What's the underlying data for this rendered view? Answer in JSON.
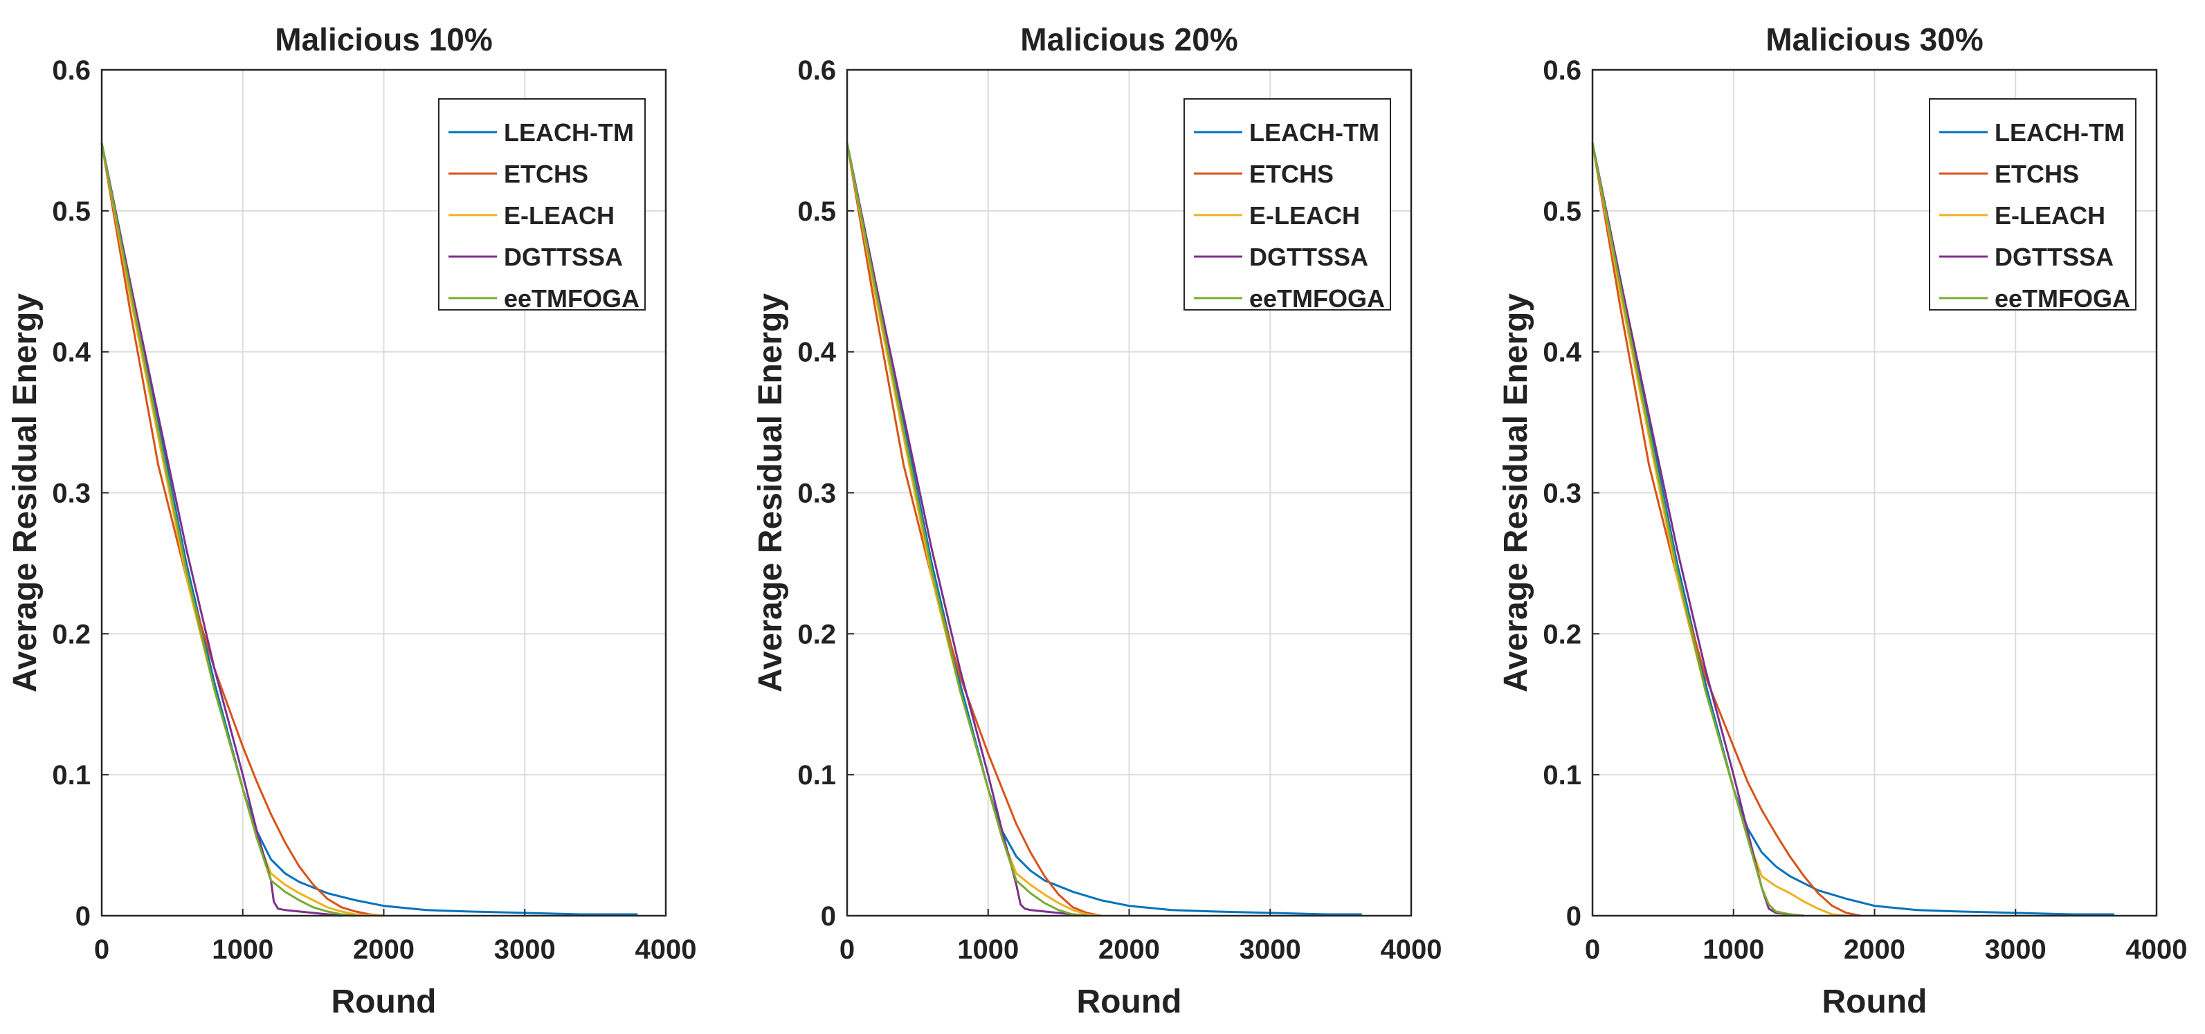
{
  "figure": {
    "ylabel": "Average Residual Energy",
    "xlabel": "Round"
  },
  "legend_entries": [
    "LEACH-TM",
    "ETCHS",
    "E-LEACH",
    "DGTTSSA",
    "eeTMFOGA"
  ],
  "colors": {
    "LEACH-TM": "#0072BD",
    "ETCHS": "#D95319",
    "E-LEACH": "#EDB120",
    "DGTTSSA": "#7E2F8E",
    "eeTMFOGA": "#77AC30",
    "grid": "#dcdcdc",
    "axes": "#262626"
  },
  "chart_data": [
    {
      "type": "line",
      "title": "Malicious 10%",
      "xlabel": "Round",
      "ylabel": "Average Residual Energy",
      "xlim": [
        0,
        4000
      ],
      "ylim": [
        0,
        0.6
      ],
      "xticks": [
        "0",
        "1000",
        "2000",
        "3000",
        "4000"
      ],
      "yticks": [
        "0",
        "0.1",
        "0.2",
        "0.3",
        "0.4",
        "0.5",
        "0.6"
      ],
      "grid": true,
      "legend_position": "top-right",
      "series": [
        {
          "name": "LEACH-TM",
          "x": [
            0,
            200,
            400,
            600,
            800,
            1000,
            1100,
            1200,
            1300,
            1400,
            1600,
            1800,
            2000,
            2300,
            2600,
            3000,
            3400,
            3800
          ],
          "y": [
            0.548,
            0.45,
            0.35,
            0.25,
            0.165,
            0.09,
            0.06,
            0.04,
            0.03,
            0.024,
            0.016,
            0.011,
            0.007,
            0.004,
            0.003,
            0.002,
            0.001,
            0.001
          ]
        },
        {
          "name": "ETCHS",
          "x": [
            0,
            200,
            400,
            600,
            800,
            1000,
            1100,
            1200,
            1300,
            1400,
            1500,
            1600,
            1700,
            1800,
            1900,
            2000
          ],
          "y": [
            0.548,
            0.43,
            0.32,
            0.24,
            0.175,
            0.12,
            0.095,
            0.072,
            0.052,
            0.035,
            0.022,
            0.012,
            0.006,
            0.003,
            0.001,
            0.0
          ]
        },
        {
          "name": "E-LEACH",
          "x": [
            0,
            200,
            400,
            600,
            800,
            1000,
            1100,
            1200,
            1300,
            1400,
            1500,
            1600,
            1700,
            1800,
            2000
          ],
          "y": [
            0.548,
            0.44,
            0.34,
            0.24,
            0.16,
            0.09,
            0.055,
            0.03,
            0.022,
            0.016,
            0.011,
            0.006,
            0.003,
            0.001,
            0.0
          ]
        },
        {
          "name": "DGTTSSA",
          "x": [
            0,
            200,
            400,
            600,
            800,
            1000,
            1100,
            1200,
            1220,
            1250,
            1300,
            1400,
            1500,
            1700
          ],
          "y": [
            0.548,
            0.45,
            0.355,
            0.26,
            0.175,
            0.1,
            0.06,
            0.025,
            0.01,
            0.005,
            0.004,
            0.003,
            0.002,
            0.0
          ]
        },
        {
          "name": "eeTMFOGA",
          "x": [
            0,
            200,
            400,
            600,
            800,
            1000,
            1100,
            1200,
            1300,
            1400,
            1500,
            1600,
            1700,
            1800
          ],
          "y": [
            0.548,
            0.445,
            0.345,
            0.245,
            0.16,
            0.09,
            0.055,
            0.025,
            0.017,
            0.011,
            0.006,
            0.003,
            0.001,
            0.0
          ]
        }
      ]
    },
    {
      "type": "line",
      "title": "Malicious 20%",
      "xlabel": "Round",
      "ylabel": "Average Residual Energy",
      "xlim": [
        0,
        4000
      ],
      "ylim": [
        0,
        0.6
      ],
      "xticks": [
        "0",
        "1000",
        "2000",
        "3000",
        "4000"
      ],
      "yticks": [
        "0",
        "0.1",
        "0.2",
        "0.3",
        "0.4",
        "0.5",
        "0.6"
      ],
      "grid": true,
      "legend_position": "top-right",
      "series": [
        {
          "name": "LEACH-TM",
          "x": [
            0,
            200,
            400,
            600,
            800,
            1000,
            1100,
            1200,
            1300,
            1400,
            1600,
            1800,
            2000,
            2300,
            2600,
            3000,
            3400,
            3650
          ],
          "y": [
            0.548,
            0.45,
            0.35,
            0.25,
            0.165,
            0.09,
            0.06,
            0.042,
            0.032,
            0.025,
            0.017,
            0.011,
            0.007,
            0.004,
            0.003,
            0.002,
            0.001,
            0.001
          ]
        },
        {
          "name": "ETCHS",
          "x": [
            0,
            200,
            400,
            600,
            800,
            1000,
            1100,
            1200,
            1300,
            1400,
            1500,
            1600,
            1700,
            1800
          ],
          "y": [
            0.548,
            0.43,
            0.32,
            0.24,
            0.17,
            0.115,
            0.09,
            0.065,
            0.045,
            0.028,
            0.015,
            0.006,
            0.002,
            0.0
          ]
        },
        {
          "name": "E-LEACH",
          "x": [
            0,
            200,
            400,
            600,
            800,
            1000,
            1100,
            1200,
            1300,
            1400,
            1500,
            1600,
            1700,
            1800
          ],
          "y": [
            0.548,
            0.44,
            0.34,
            0.24,
            0.16,
            0.09,
            0.055,
            0.03,
            0.022,
            0.015,
            0.009,
            0.004,
            0.001,
            0.0
          ]
        },
        {
          "name": "DGTTSSA",
          "x": [
            0,
            200,
            400,
            600,
            800,
            1000,
            1100,
            1200,
            1230,
            1260,
            1300,
            1400,
            1500,
            1700
          ],
          "y": [
            0.548,
            0.45,
            0.355,
            0.26,
            0.175,
            0.1,
            0.06,
            0.022,
            0.008,
            0.005,
            0.004,
            0.003,
            0.002,
            0.0
          ]
        },
        {
          "name": "eeTMFOGA",
          "x": [
            0,
            200,
            400,
            600,
            800,
            1000,
            1100,
            1200,
            1300,
            1400,
            1500,
            1600,
            1700
          ],
          "y": [
            0.548,
            0.445,
            0.345,
            0.245,
            0.16,
            0.09,
            0.055,
            0.025,
            0.016,
            0.009,
            0.004,
            0.001,
            0.0
          ]
        }
      ]
    },
    {
      "type": "line",
      "title": "Malicious 30%",
      "xlabel": "Round",
      "ylabel": "Average Residual Energy",
      "xlim": [
        0,
        4000
      ],
      "ylim": [
        0,
        0.6
      ],
      "xticks": [
        "0",
        "1000",
        "2000",
        "3000",
        "4000"
      ],
      "yticks": [
        "0",
        "0.1",
        "0.2",
        "0.3",
        "0.4",
        "0.5",
        "0.6"
      ],
      "grid": true,
      "legend_position": "top-right",
      "series": [
        {
          "name": "LEACH-TM",
          "x": [
            0,
            200,
            400,
            600,
            800,
            1000,
            1100,
            1200,
            1300,
            1400,
            1600,
            1800,
            2000,
            2300,
            2600,
            3000,
            3400,
            3700
          ],
          "y": [
            0.548,
            0.45,
            0.35,
            0.25,
            0.165,
            0.09,
            0.062,
            0.045,
            0.035,
            0.028,
            0.018,
            0.012,
            0.007,
            0.004,
            0.003,
            0.002,
            0.001,
            0.001
          ]
        },
        {
          "name": "ETCHS",
          "x": [
            0,
            200,
            400,
            600,
            800,
            1000,
            1100,
            1200,
            1300,
            1400,
            1500,
            1600,
            1700,
            1800,
            1900
          ],
          "y": [
            0.548,
            0.43,
            0.32,
            0.24,
            0.17,
            0.12,
            0.095,
            0.075,
            0.058,
            0.042,
            0.028,
            0.016,
            0.007,
            0.002,
            0.0
          ]
        },
        {
          "name": "E-LEACH",
          "x": [
            0,
            200,
            400,
            600,
            800,
            1000,
            1100,
            1200,
            1300,
            1400,
            1500,
            1600,
            1700,
            1800
          ],
          "y": [
            0.548,
            0.44,
            0.34,
            0.24,
            0.16,
            0.09,
            0.055,
            0.028,
            0.021,
            0.016,
            0.01,
            0.005,
            0.001,
            0.0
          ]
        },
        {
          "name": "DGTTSSA",
          "x": [
            0,
            200,
            400,
            600,
            800,
            1000,
            1100,
            1200,
            1250,
            1300,
            1400,
            1500
          ],
          "y": [
            0.548,
            0.45,
            0.355,
            0.26,
            0.175,
            0.1,
            0.06,
            0.02,
            0.005,
            0.002,
            0.001,
            0.0
          ]
        },
        {
          "name": "eeTMFOGA",
          "x": [
            0,
            200,
            400,
            600,
            800,
            1000,
            1100,
            1200,
            1250,
            1300,
            1400,
            1500
          ],
          "y": [
            0.548,
            0.445,
            0.345,
            0.245,
            0.16,
            0.09,
            0.055,
            0.02,
            0.008,
            0.003,
            0.001,
            0.0
          ]
        }
      ]
    }
  ]
}
